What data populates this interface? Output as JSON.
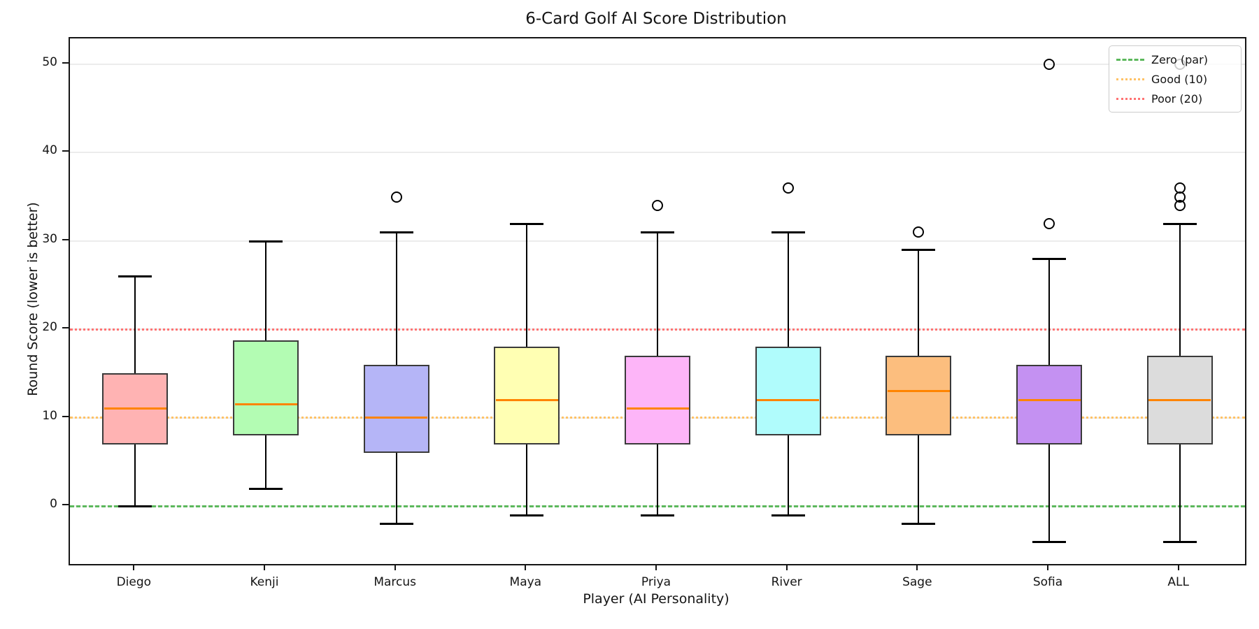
{
  "chart_data": {
    "type": "boxplot",
    "title": "6-Card Golf AI Score Distribution",
    "xlabel": "Player (AI Personality)",
    "ylabel": "Round Score (lower is better)",
    "ylim": [
      -6.6,
      52.9
    ],
    "yticks": [
      0,
      10,
      20,
      30,
      40,
      50
    ],
    "grid": "horizontal-major",
    "legend_position": "upper-right",
    "median_color": "#ff8400",
    "box_edge_color": "#3a3a3a",
    "whisker_color": "#000000",
    "categories": [
      "Diego",
      "Kenji",
      "Marcus",
      "Maya",
      "Priya",
      "River",
      "Sage",
      "Sofia",
      "ALL"
    ],
    "series": [
      {
        "name": "Diego",
        "whisker_low": 0,
        "q1": 7,
        "median": 11,
        "q3": 15,
        "whisker_high": 26,
        "outliers": [],
        "color": "#ffb3b3"
      },
      {
        "name": "Kenji",
        "whisker_low": 2,
        "q1": 8,
        "median": 11.5,
        "q3": 18.75,
        "whisker_high": 30,
        "outliers": [],
        "color": "#b3fcb3"
      },
      {
        "name": "Marcus",
        "whisker_low": -2,
        "q1": 6,
        "median": 10,
        "q3": 16,
        "whisker_high": 31,
        "outliers": [
          35
        ],
        "color": "#b5b5f7"
      },
      {
        "name": "Maya",
        "whisker_low": -1,
        "q1": 7,
        "median": 12,
        "q3": 18,
        "whisker_high": 32,
        "outliers": [],
        "color": "#ffffb3"
      },
      {
        "name": "Priya",
        "whisker_low": -1,
        "q1": 7,
        "median": 11,
        "q3": 17,
        "whisker_high": 31,
        "outliers": [
          34
        ],
        "color": "#fdb5f8"
      },
      {
        "name": "River",
        "whisker_low": -1,
        "q1": 8,
        "median": 12,
        "q3": 18,
        "whisker_high": 31,
        "outliers": [
          36
        ],
        "color": "#b0fcfc"
      },
      {
        "name": "Sage",
        "whisker_low": -2,
        "q1": 8,
        "median": 13,
        "q3": 17,
        "whisker_high": 29,
        "outliers": [
          31
        ],
        "color": "#fcbe7e"
      },
      {
        "name": "Sofia",
        "whisker_low": -4,
        "q1": 7,
        "median": 12,
        "q3": 16,
        "whisker_high": 28,
        "outliers": [
          32,
          50
        ],
        "color": "#c491f2"
      },
      {
        "name": "ALL",
        "whisker_low": -4,
        "q1": 7,
        "median": 12,
        "q3": 17,
        "whisker_high": 32,
        "outliers": [
          34,
          35,
          36,
          50
        ],
        "color": "#dcdcdc"
      }
    ],
    "reference_lines": [
      {
        "label": "Zero (par)",
        "value": 0,
        "color": "#5cb85c",
        "style": "dashed"
      },
      {
        "label": "Good (10)",
        "value": 10,
        "color": "#ffc266",
        "style": "dotted"
      },
      {
        "label": "Poor (20)",
        "value": 20,
        "color": "#ff7373",
        "style": "dotted"
      }
    ]
  }
}
